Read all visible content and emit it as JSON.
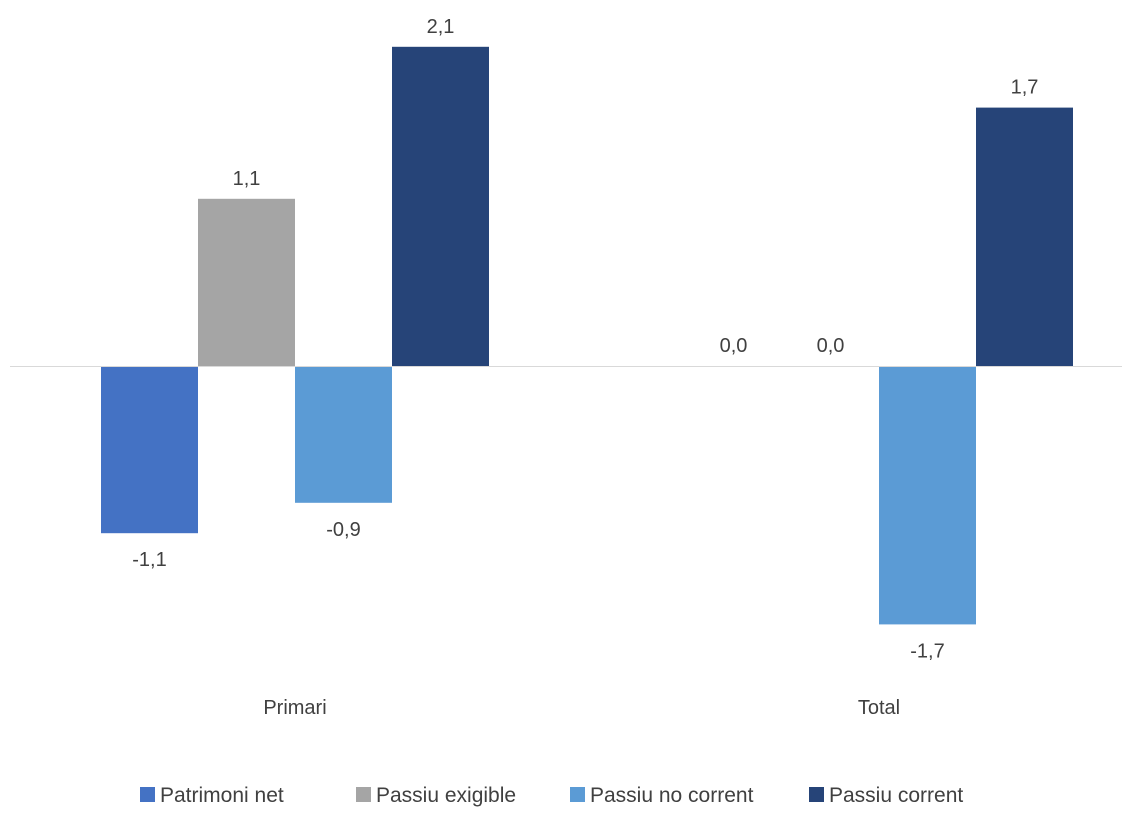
{
  "chart_data": {
    "type": "bar",
    "categories": [
      "Primari",
      "Total"
    ],
    "series": [
      {
        "name": "Patrimoni net",
        "values": [
          -1.1,
          0.0
        ],
        "labels": [
          "-1,1",
          "0,0"
        ],
        "color": "#4472C4"
      },
      {
        "name": "Passiu exigible",
        "values": [
          1.1,
          0.0
        ],
        "labels": [
          "1,1",
          "0,0"
        ],
        "color": "#A5A5A5"
      },
      {
        "name": "Passiu no corrent",
        "values": [
          -0.9,
          -1.7
        ],
        "labels": [
          "-0,9",
          "-1,7"
        ],
        "color": "#5B9BD5"
      },
      {
        "name": "Passiu corrent",
        "values": [
          2.1,
          1.7
        ],
        "labels": [
          "2,1",
          "1,7"
        ],
        "color": "#264478"
      }
    ],
    "ylim": [
      -1.7,
      2.1
    ],
    "grid": false,
    "legend_position": "bottom",
    "axis_color": "#D9D9D9"
  }
}
